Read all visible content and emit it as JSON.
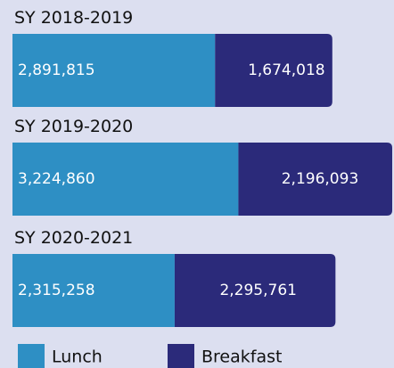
{
  "chart_data": {
    "type": "stacked-bar-horizontal",
    "categories": [
      "SY 2018-2019",
      "SY 2019-2020",
      "SY 2020-2021"
    ],
    "series": [
      {
        "name": "Lunch",
        "color": "#2e8fc4",
        "values": [
          2891815,
          3224860,
          2315258
        ],
        "value_labels": [
          "2,891,815",
          "3,224,860",
          "2,315,258"
        ]
      },
      {
        "name": "Breakfast",
        "color": "#2b2a7a",
        "values": [
          1674018,
          2196093,
          2295761
        ],
        "value_labels": [
          "1,674,018",
          "2,196,093",
          "2,295,761"
        ]
      }
    ]
  }
}
